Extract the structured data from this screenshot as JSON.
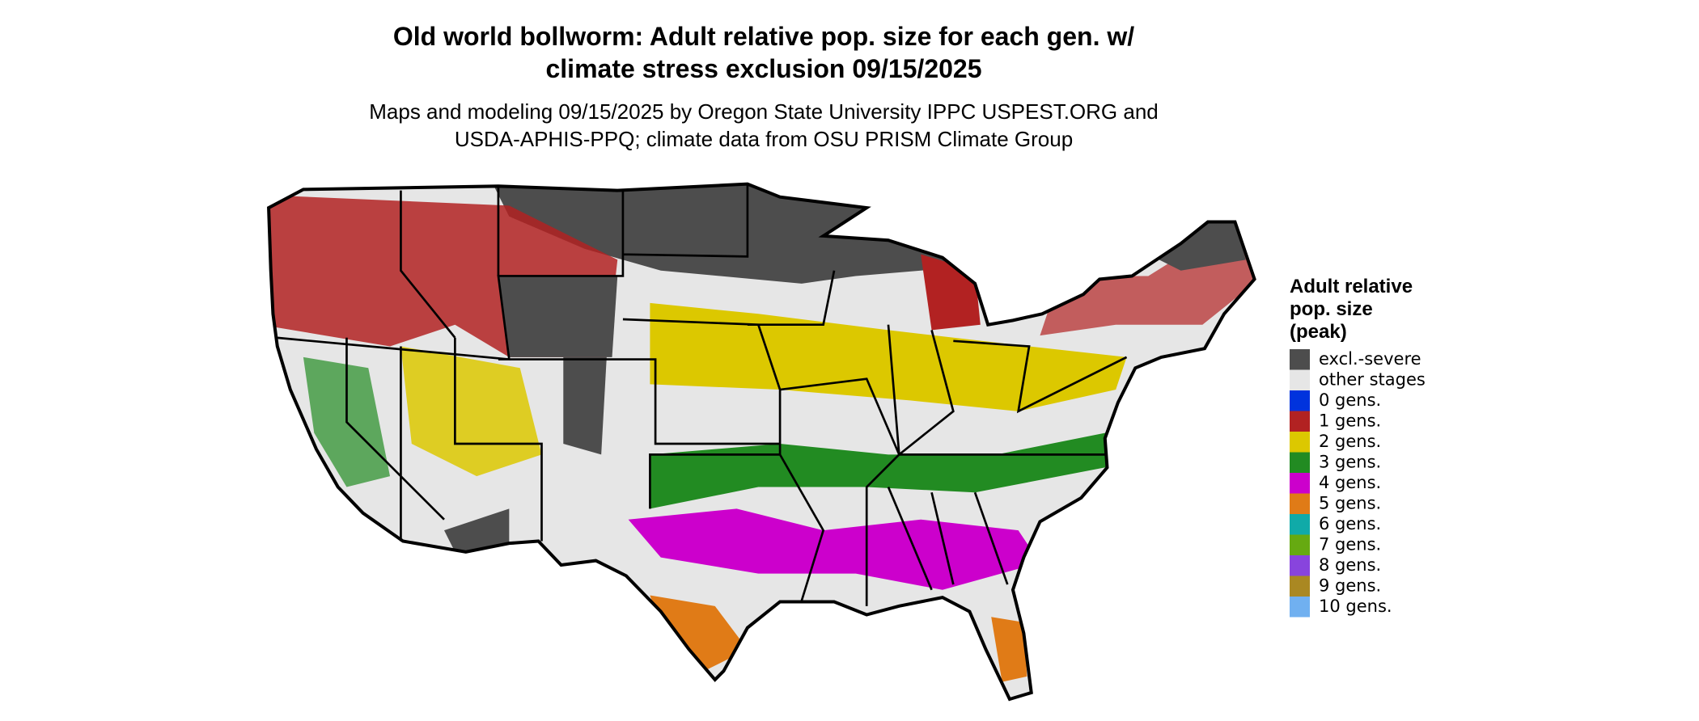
{
  "header": {
    "title": [
      "Old world bollworm: Adult relative pop. size for each gen. w/",
      "climate stress exclusion 09/15/2025"
    ],
    "subtitle": [
      "Maps and modeling 09/15/2025 by Oregon State University IPPC USPEST.ORG and",
      "USDA-APHIS-PPQ; climate data from OSU PRISM Climate Group"
    ]
  },
  "legend": {
    "title": [
      "Adult relative",
      "pop. size",
      "(peak)"
    ],
    "items": [
      {
        "label": "excl.-severe",
        "color": "#4d4d4d"
      },
      {
        "label": "other stages",
        "color": "#e6e6e6"
      },
      {
        "label": "0 gens.",
        "color": "#0033dd"
      },
      {
        "label": "1 gens.",
        "color": "#b22222"
      },
      {
        "label": "2 gens.",
        "color": "#dcc800"
      },
      {
        "label": "3 gens.",
        "color": "#228b22"
      },
      {
        "label": "4 gens.",
        "color": "#cc00cc"
      },
      {
        "label": "5 gens.",
        "color": "#e07b17"
      },
      {
        "label": "6 gens.",
        "color": "#10aaa8"
      },
      {
        "label": "7 gens.",
        "color": "#66aa11"
      },
      {
        "label": "8 gens.",
        "color": "#8844dd"
      },
      {
        "label": "9 gens.",
        "color": "#aa8822"
      },
      {
        "label": "10 gens.",
        "color": "#70b0f0"
      }
    ]
  }
}
